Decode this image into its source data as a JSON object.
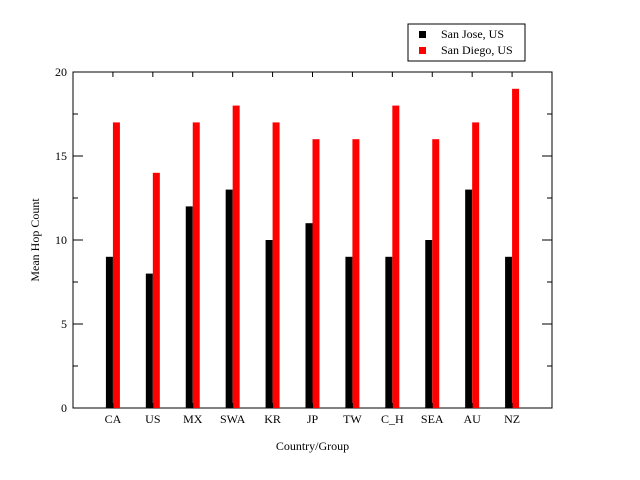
{
  "chart_data": {
    "type": "bar",
    "title": "",
    "xlabel": "Country/Group",
    "ylabel": "Mean Hop Count",
    "categories": [
      "CA",
      "US",
      "MX",
      "SWA",
      "KR",
      "JP",
      "TW",
      "C_H",
      "SEA",
      "AU",
      "NZ"
    ],
    "series": [
      {
        "name": "San Jose, US",
        "color": "#000000",
        "values": [
          9,
          8,
          12,
          13,
          10,
          11,
          9,
          9,
          10,
          13,
          9
        ]
      },
      {
        "name": "San Diego, US",
        "color": "#ff0000",
        "values": [
          17,
          14,
          17,
          18,
          17,
          16,
          16,
          18,
          16,
          17,
          19
        ]
      }
    ],
    "ylim": [
      0,
      20
    ],
    "yticks": [
      0,
      5,
      10,
      15,
      20
    ],
    "grid": false,
    "legend_position": "top-right"
  }
}
